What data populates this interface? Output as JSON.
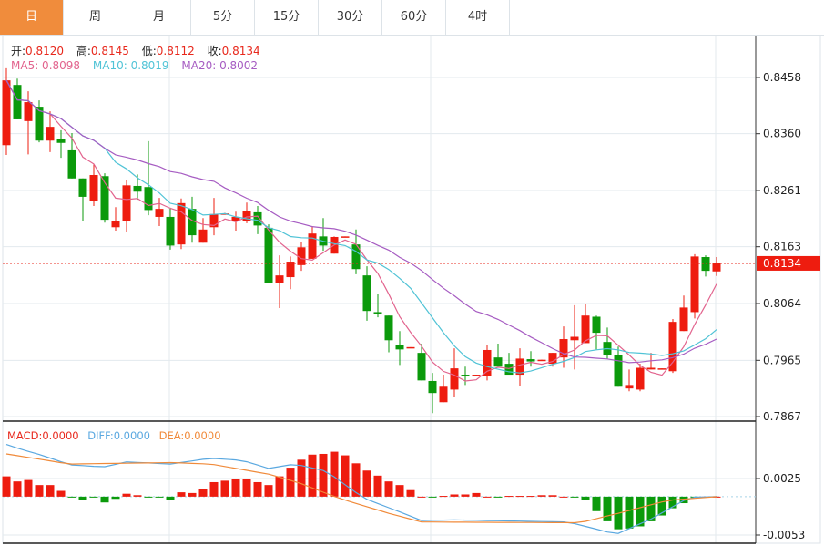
{
  "tabs": [
    {
      "label": "日",
      "active": true
    },
    {
      "label": "周"
    },
    {
      "label": "月"
    },
    {
      "label": "5分"
    },
    {
      "label": "15分"
    },
    {
      "label": "30分"
    },
    {
      "label": "60分"
    },
    {
      "label": "4时"
    }
  ],
  "ohlc_info": {
    "open_label": "开:",
    "open": "0.8120",
    "high_label": "高:",
    "high": "0.8145",
    "low_label": "低:",
    "low": "0.8112",
    "close_label": "收:",
    "close": "0.8134"
  },
  "ma_info": {
    "ma5": "MA5: 0.8098",
    "ma10": "MA10: 0.8019",
    "ma20": "MA20: 0.8002"
  },
  "macd_info": {
    "macd": "MACD:0.0000",
    "diff": "DIFF:0.0000",
    "dea": "DEA:0.0000"
  },
  "price_axis": [
    "0.8458",
    "0.8360",
    "0.8261",
    "0.8163",
    "0.8064",
    "0.7965",
    "0.7867"
  ],
  "macd_axis": [
    "0.0025",
    "-0.0053"
  ],
  "current_price": "0.8134",
  "colors": {
    "up": "#ee1c0f",
    "down": "#0b9a0b",
    "ma5": "#e2648e",
    "ma10": "#50c3d6",
    "ma20": "#a65cc2",
    "diff": "#5aa8e0",
    "dea": "#f08a3a",
    "accent": "#f08c3c"
  },
  "chart_data": {
    "type": "candlestick",
    "price_range": [
      0.7867,
      0.8458
    ],
    "macd_range": [
      -0.0053,
      0.0025
    ],
    "candles": [
      [
        0.834,
        0.8474,
        0.8323,
        0.8453
      ],
      [
        0.8445,
        0.8456,
        0.8385,
        0.8385
      ],
      [
        0.8382,
        0.8434,
        0.8324,
        0.8415
      ],
      [
        0.8407,
        0.8418,
        0.8345,
        0.8348
      ],
      [
        0.8348,
        0.8399,
        0.8328,
        0.8372
      ],
      [
        0.835,
        0.8366,
        0.8318,
        0.8344
      ],
      [
        0.8331,
        0.8361,
        0.8282,
        0.8282
      ],
      [
        0.8282,
        0.8282,
        0.8208,
        0.825
      ],
      [
        0.8243,
        0.8307,
        0.8234,
        0.8288
      ],
      [
        0.8286,
        0.8291,
        0.8205,
        0.821
      ],
      [
        0.8197,
        0.8232,
        0.8191,
        0.8208
      ],
      [
        0.8207,
        0.828,
        0.8188,
        0.827
      ],
      [
        0.8269,
        0.8289,
        0.8245,
        0.8259
      ],
      [
        0.8267,
        0.8347,
        0.8218,
        0.8227
      ],
      [
        0.8215,
        0.8248,
        0.8199,
        0.8229
      ],
      [
        0.8215,
        0.8231,
        0.8158,
        0.8165
      ],
      [
        0.8167,
        0.8247,
        0.8159,
        0.8239
      ],
      [
        0.8229,
        0.825,
        0.817,
        0.8183
      ],
      [
        0.817,
        0.8213,
        0.817,
        0.8193
      ],
      [
        0.8197,
        0.8248,
        0.8183,
        0.822
      ],
      [
        0.822,
        0.8222,
        0.822,
        0.8221
      ],
      [
        0.8208,
        0.8224,
        0.8191,
        0.8215
      ],
      [
        0.8208,
        0.824,
        0.8204,
        0.8226
      ],
      [
        0.8223,
        0.8234,
        0.8185,
        0.82
      ],
      [
        0.8196,
        0.8202,
        0.81,
        0.81
      ],
      [
        0.81,
        0.8148,
        0.8056,
        0.8113
      ],
      [
        0.811,
        0.8146,
        0.8089,
        0.8137
      ],
      [
        0.8131,
        0.8172,
        0.8121,
        0.8162
      ],
      [
        0.8142,
        0.8199,
        0.8142,
        0.8186
      ],
      [
        0.8181,
        0.8213,
        0.8156,
        0.8165
      ],
      [
        0.8151,
        0.8181,
        0.8151,
        0.818
      ],
      [
        0.818,
        0.8181,
        0.818,
        0.8181
      ],
      [
        0.8167,
        0.8193,
        0.8115,
        0.8124
      ],
      [
        0.8113,
        0.8129,
        0.8034,
        0.8051
      ],
      [
        0.8049,
        0.808,
        0.804,
        0.8046
      ],
      [
        0.8043,
        0.8043,
        0.7979,
        0.8
      ],
      [
        0.7992,
        0.8016,
        0.7957,
        0.7984
      ],
      [
        0.7987,
        0.7988,
        0.7987,
        0.7988
      ],
      [
        0.7978,
        0.7994,
        0.793,
        0.793
      ],
      [
        0.7929,
        0.7943,
        0.7873,
        0.7908
      ],
      [
        0.7892,
        0.794,
        0.7892,
        0.7919
      ],
      [
        0.7914,
        0.7986,
        0.7902,
        0.7951
      ],
      [
        0.794,
        0.7954,
        0.7922,
        0.7937
      ],
      [
        0.7939,
        0.794,
        0.7939,
        0.794
      ],
      [
        0.7937,
        0.7991,
        0.793,
        0.7983
      ],
      [
        0.797,
        0.7994,
        0.7954,
        0.7954
      ],
      [
        0.7959,
        0.7978,
        0.794,
        0.794
      ],
      [
        0.794,
        0.7986,
        0.7921,
        0.7968
      ],
      [
        0.7967,
        0.7981,
        0.7954,
        0.7963
      ],
      [
        0.7965,
        0.7966,
        0.7965,
        0.7966
      ],
      [
        0.7959,
        0.7978,
        0.7954,
        0.7978
      ],
      [
        0.797,
        0.8024,
        0.7952,
        0.8002
      ],
      [
        0.8,
        0.8061,
        0.7949,
        0.8006
      ],
      [
        0.7995,
        0.8064,
        0.7995,
        0.8043
      ],
      [
        0.8041,
        0.8043,
        0.7984,
        0.8013
      ],
      [
        0.7997,
        0.8022,
        0.7967,
        0.7975
      ],
      [
        0.7975,
        0.7989,
        0.7919,
        0.7919
      ],
      [
        0.7916,
        0.7949,
        0.7911,
        0.7922
      ],
      [
        0.7914,
        0.7959,
        0.7911,
        0.7952
      ],
      [
        0.7949,
        0.7978,
        0.7949,
        0.7952
      ],
      [
        0.795,
        0.7951,
        0.795,
        0.7951
      ],
      [
        0.7946,
        0.8037,
        0.7943,
        0.8032
      ],
      [
        0.8016,
        0.8078,
        0.8016,
        0.8057
      ],
      [
        0.8049,
        0.815,
        0.8038,
        0.8146
      ],
      [
        0.8145,
        0.8148,
        0.8111,
        0.8121
      ],
      [
        0.812,
        0.8145,
        0.8112,
        0.8134
      ]
    ],
    "macd_hist": [
      0.0028,
      0.0021,
      0.0023,
      0.0016,
      0.0016,
      0.0008,
      -0.0001,
      -0.0004,
      -0.0001,
      -0.0008,
      -0.0003,
      0.0004,
      0.0002,
      -0.0001,
      -0.0001,
      -0.0004,
      0.0006,
      0.0005,
      0.0011,
      0.002,
      0.0022,
      0.0024,
      0.0024,
      0.002,
      0.0016,
      0.0028,
      0.004,
      0.0051,
      0.0058,
      0.0059,
      0.0062,
      0.0057,
      0.0046,
      0.0036,
      0.0029,
      0.0021,
      0.0016,
      0.0009,
      0.0,
      -0.0001,
      0.0001,
      0.0003,
      0.0003,
      0.0005,
      0.0,
      -0.0001,
      0.0001,
      0.0001,
      0.0001,
      0.0002,
      0.0002,
      0.0,
      -0.0001,
      -0.0005,
      -0.002,
      -0.0034,
      -0.0045,
      -0.0044,
      -0.0041,
      -0.0034,
      -0.0026,
      -0.0016,
      -0.0009,
      -0.0001,
      0.0,
      0.0
    ],
    "diff_points": [
      [
        0,
        0.0072
      ],
      [
        1.4,
        0.0065
      ],
      [
        3.3,
        0.0057
      ],
      [
        5.8,
        0.0044
      ],
      [
        8.9,
        0.0041
      ],
      [
        11,
        0.0048
      ],
      [
        15,
        0.0045
      ],
      [
        18.7,
        0.0053
      ],
      [
        21.6,
        0.005
      ],
      [
        24,
        0.0039
      ],
      [
        26.4,
        0.0045
      ],
      [
        29.3,
        0.0035
      ],
      [
        32.7,
        -0.0002
      ],
      [
        36,
        -0.0021
      ],
      [
        38,
        -0.0033
      ],
      [
        41,
        -0.0032
      ],
      [
        44,
        -0.0033
      ],
      [
        51.4,
        -0.0035
      ],
      [
        53.8,
        -0.0044
      ],
      [
        55.8,
        -0.0052
      ],
      [
        59,
        -0.0031
      ],
      [
        62.5,
        -0.0001
      ],
      [
        65,
        0.0
      ]
    ],
    "dea_points": [
      [
        0,
        0.0059
      ],
      [
        5.8,
        0.0045
      ],
      [
        15,
        0.0047
      ],
      [
        18.7,
        0.0045
      ],
      [
        24,
        0.0031
      ],
      [
        26.8,
        0.0019
      ],
      [
        30.4,
        -0.0002
      ],
      [
        35,
        -0.0023
      ],
      [
        38,
        -0.0035
      ],
      [
        52.5,
        -0.0036
      ],
      [
        56,
        -0.0023
      ],
      [
        60.6,
        -0.0005
      ],
      [
        65,
        0.0
      ]
    ]
  }
}
